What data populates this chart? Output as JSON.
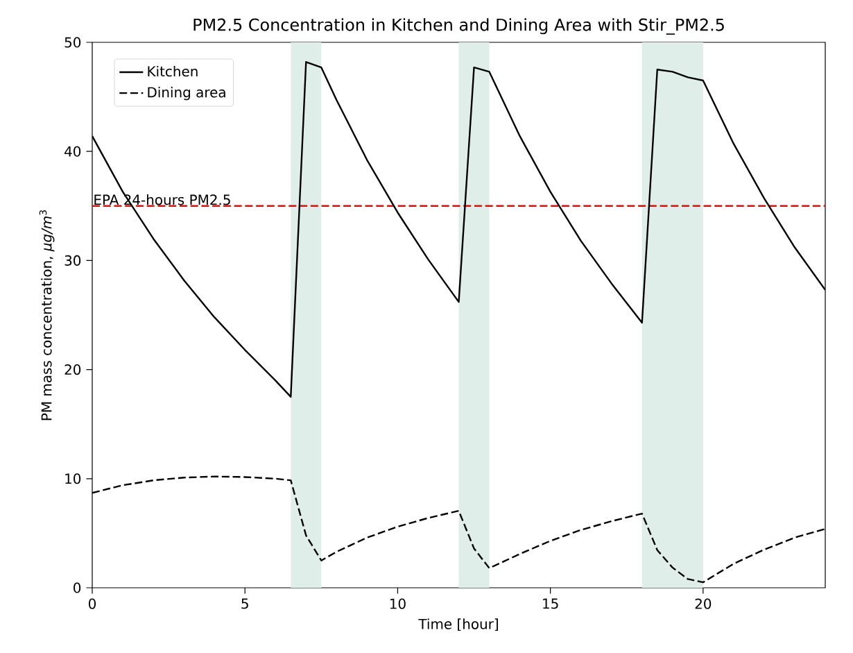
{
  "chart_data": {
    "type": "line",
    "title": "PM2.5 Concentration in Kitchen and Dining Area with Stir_PM2.5",
    "xlabel": "Time [hour]",
    "ylabel": "PM mass concentration, *μg/m*$^{3}$",
    "xlim": [
      0,
      24
    ],
    "ylim": [
      0,
      50
    ],
    "xticks": [
      0,
      5,
      10,
      15,
      20
    ],
    "yticks": [
      0,
      10,
      20,
      30,
      40,
      50
    ],
    "grid": false,
    "legend": "top left",
    "marker": "none",
    "series": [
      {
        "name": "Kitchen",
        "color": "#000000",
        "line_style": "solid",
        "x": [
          0,
          1,
          2,
          3,
          4,
          5,
          6,
          6.5,
          7,
          7.5,
          8,
          9,
          10,
          11,
          12,
          12.5,
          13,
          14,
          15,
          16,
          17,
          18,
          18.5,
          19,
          19.5,
          20,
          21,
          22,
          23,
          24
        ],
        "values": [
          41.4,
          36.3,
          32.0,
          28.2,
          24.8,
          21.8,
          19.0,
          17.5,
          48.2,
          47.7,
          44.7,
          39.2,
          34.4,
          30.1,
          26.2,
          47.7,
          47.3,
          41.4,
          36.3,
          31.8,
          27.9,
          24.3,
          47.5,
          47.3,
          46.8,
          46.5,
          40.7,
          35.7,
          31.2,
          27.3
        ]
      },
      {
        "name": "Dining area",
        "color": "#000000",
        "line_style": "dashed",
        "x": [
          0,
          1,
          2,
          3,
          4,
          5,
          6,
          6.5,
          7,
          7.5,
          8,
          9,
          10,
          11,
          12,
          12.5,
          13,
          14,
          15,
          16,
          17,
          18,
          18.5,
          19,
          19.5,
          20,
          21,
          22,
          23,
          24
        ],
        "values": [
          8.7,
          9.4,
          9.85,
          10.1,
          10.2,
          10.15,
          10.0,
          9.85,
          4.8,
          2.5,
          3.3,
          4.6,
          5.6,
          6.4,
          7.05,
          3.6,
          1.8,
          3.1,
          4.3,
          5.3,
          6.1,
          6.8,
          3.45,
          1.85,
          0.8,
          0.5,
          2.2,
          3.5,
          4.6,
          5.4
        ]
      }
    ],
    "ref_lines": [
      {
        "axis": "y",
        "value": 35,
        "label": "EPA 24-hours PM2.5",
        "color": "#ff0000",
        "line_style": "dashed"
      }
    ],
    "bands": [
      {
        "axis": "x",
        "from": 6.5,
        "to": 7.5,
        "color": "#dfeee8"
      },
      {
        "axis": "x",
        "from": 12,
        "to": 13,
        "color": "#dfeee8"
      },
      {
        "axis": "x",
        "from": 18,
        "to": 20,
        "color": "#dfeee8"
      }
    ]
  }
}
